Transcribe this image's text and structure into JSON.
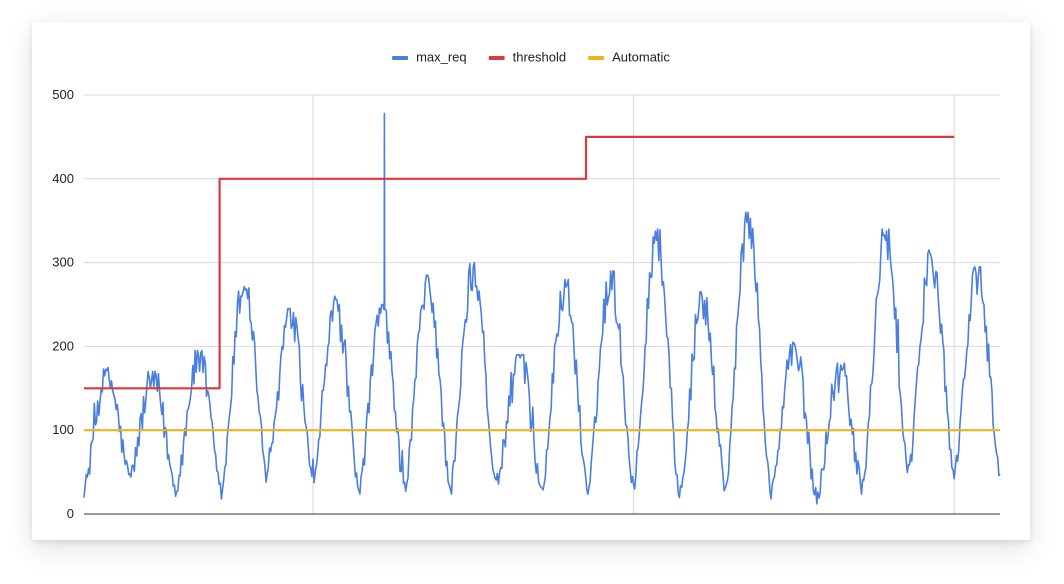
{
  "chart_data": {
    "type": "line",
    "title": "",
    "xlabel": "",
    "ylabel": "",
    "ylim": [
      0,
      500
    ],
    "y_ticks": [
      0,
      100,
      200,
      300,
      400,
      500
    ],
    "x_range": [
      0,
      1000
    ],
    "x_gridlines": [
      250,
      600,
      950
    ],
    "grid": true,
    "legend_position": "top",
    "series": [
      {
        "name": "max_req",
        "color": "#4a7fe0",
        "daily_cycle": {
          "period_x": 50,
          "start_x": 0,
          "end_x": 1000,
          "peaks": [
            165,
            160,
            185,
            275,
            235,
            250,
            240,
            275,
            290,
            180,
            270,
            280,
            330,
            255,
            350,
            195,
            170,
            330,
            305,
            285
          ],
          "troughs": [
            30,
            45,
            30,
            25,
            45,
            45,
            25,
            30,
            30,
            35,
            30,
            30,
            35,
            25,
            30,
            25,
            20,
            30,
            50,
            50
          ],
          "spikes": [
            {
              "x": 328,
              "y": 478
            }
          ],
          "end_value": 48
        }
      },
      {
        "name": "threshold",
        "color": "#d93a3a",
        "x": [
          0,
          148,
          148,
          548,
          548,
          950
        ],
        "y": [
          150,
          150,
          400,
          400,
          450,
          450
        ]
      },
      {
        "name": "Automatic",
        "color": "#f2b21a",
        "x": [
          0,
          1000
        ],
        "y": [
          100,
          100
        ]
      }
    ]
  }
}
